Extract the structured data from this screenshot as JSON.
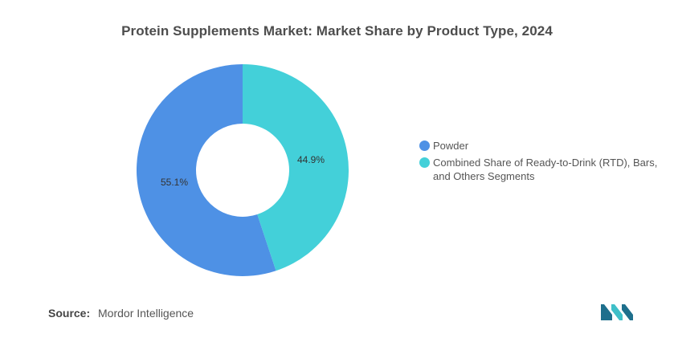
{
  "title": "Protein Supplements Market: Market Share by Product Type, 2024",
  "source": {
    "label": "Source:",
    "value": "Mordor Intelligence"
  },
  "logo": {
    "icon": "mordor-intelligence-logo",
    "colors": [
      "#1e6f8c",
      "#3fbfc8"
    ]
  },
  "chart_data": {
    "type": "pie",
    "donut": true,
    "legend_position": "right",
    "slices": [
      {
        "name": "Powder",
        "value": 55.1,
        "label": "55.1%",
        "color": "#4e91e5"
      },
      {
        "name": "Combined Share of Ready-to-Drink (RTD), Bars, and Others Segments",
        "value": 44.9,
        "label": "44.9%",
        "color": "#43d0d9"
      }
    ]
  }
}
